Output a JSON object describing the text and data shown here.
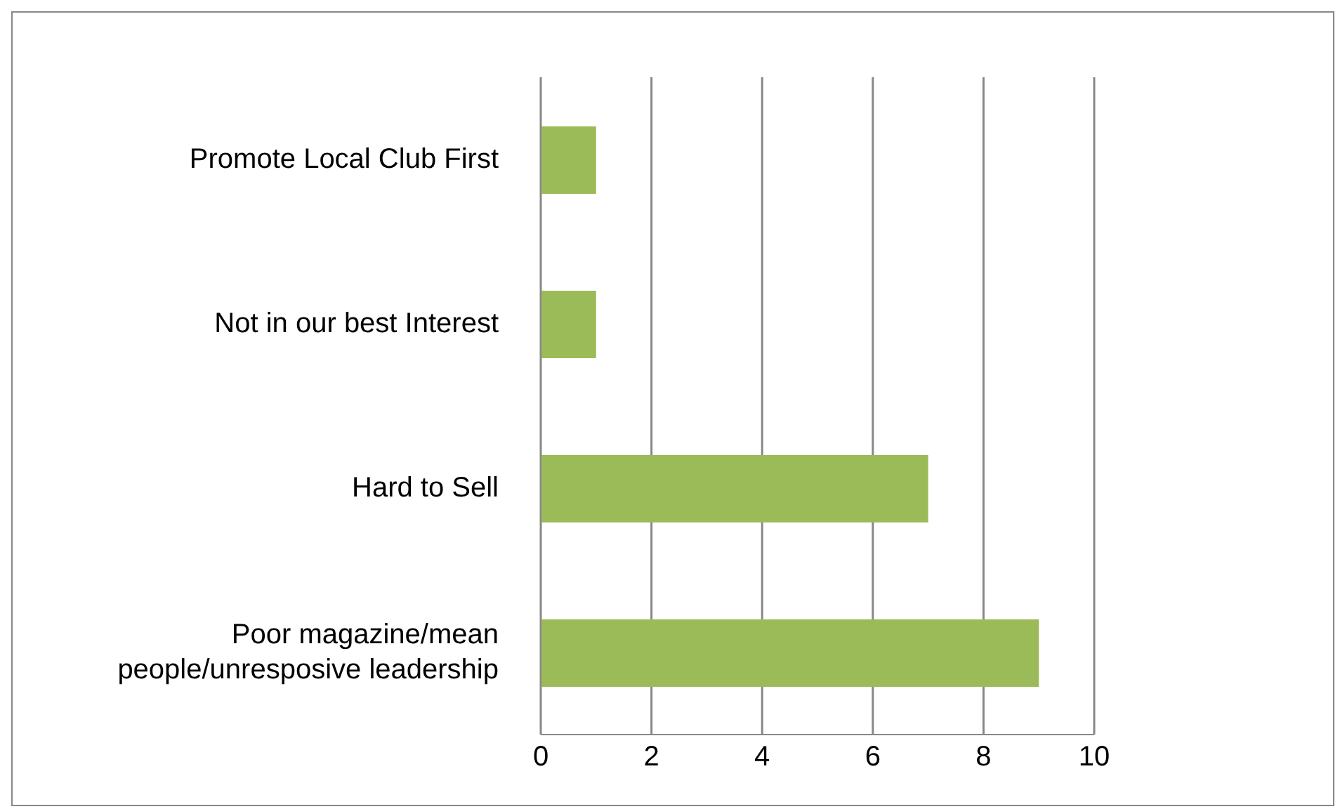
{
  "chart_data": {
    "type": "bar",
    "orientation": "horizontal",
    "categories": [
      "Promote Local Club First",
      "Not in our best Interest",
      "Hard to Sell",
      "Poor magazine/mean people/unresposive leadership"
    ],
    "values": [
      1,
      1,
      7,
      9
    ],
    "color": "#9bbb59",
    "xlim": [
      0,
      10
    ],
    "xticks": [
      0,
      2,
      4,
      6,
      8,
      10
    ],
    "grid": "x",
    "legend": false
  }
}
